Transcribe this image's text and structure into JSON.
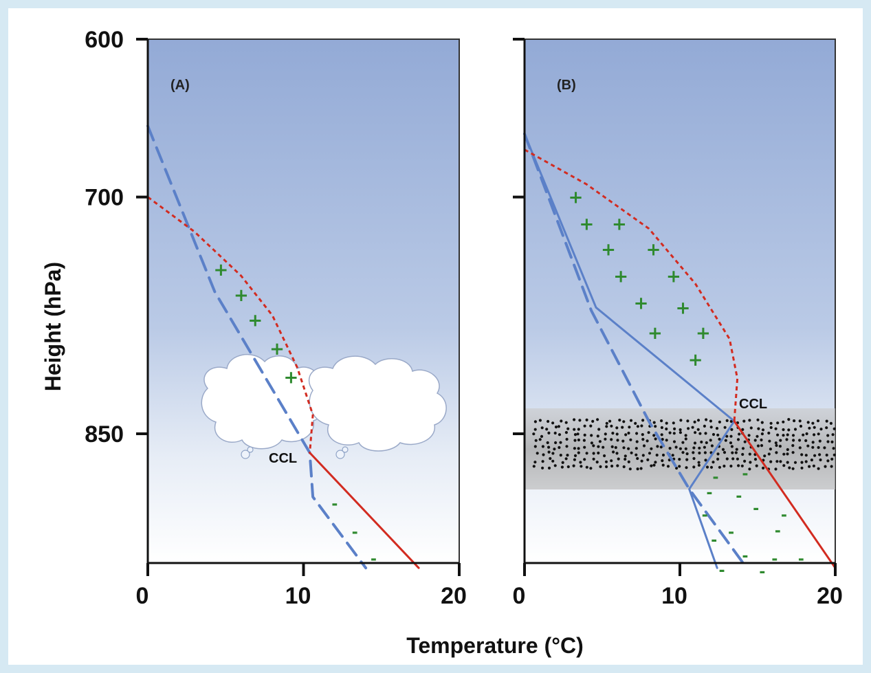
{
  "chart_data": {
    "type": "line",
    "xlabel": "Temperature (°C)",
    "ylabel": "Height (hPa)",
    "xlim": [
      0,
      20
    ],
    "ylim": [
      935,
      600
    ],
    "x_ticks": [
      0,
      10,
      20
    ],
    "y_ticks": [
      600,
      700,
      850
    ],
    "grid": false,
    "colors": {
      "environment": "#5b80c8",
      "parcel": "#d22b20",
      "sign": "#2f8a2f",
      "background_top": "#93aad6",
      "background_bottom": "#ffffff"
    },
    "panels": [
      {
        "label": "(A)",
        "ccl_label": "CCL",
        "ccl": [
          10.4,
          862
        ],
        "series": [
          {
            "role": "environment",
            "style": "dashed",
            "points": [
              [
                0,
                655
              ],
              [
                4.3,
                760
              ],
              [
                10.4,
                862
              ],
              [
                10.6,
                890
              ],
              [
                14,
                935
              ]
            ]
          },
          {
            "role": "parcel",
            "style": "dotted",
            "points": [
              [
                0,
                700
              ],
              [
                3,
                722
              ],
              [
                6,
                750
              ],
              [
                8,
                775
              ],
              [
                9.6,
                808
              ],
              [
                10.6,
                838
              ],
              [
                10.4,
                862
              ]
            ]
          },
          {
            "role": "parcel",
            "style": "solid",
            "points": [
              [
                10.4,
                862
              ],
              [
                17.4,
                935
              ]
            ]
          }
        ],
        "plus_marks": [
          [
            4.7,
            746
          ],
          [
            6.0,
            762
          ],
          [
            6.9,
            778
          ],
          [
            8.3,
            796
          ],
          [
            9.2,
            814
          ]
        ],
        "minus_marks": [
          [
            12.0,
            895
          ],
          [
            13.3,
            913
          ],
          [
            14.5,
            930
          ]
        ],
        "clouds": [
          "cloud-1",
          "cloud-2"
        ]
      },
      {
        "label": "(B)",
        "ccl_label": "CCL",
        "ccl": [
          13.5,
          842
        ],
        "cloud_layer": [
          838,
          885
        ],
        "series": [
          {
            "role": "environment",
            "style": "solid",
            "points": [
              [
                0,
                660
              ],
              [
                4.6,
                770
              ],
              [
                13.5,
                842
              ],
              [
                10.6,
                885
              ],
              [
                12.4,
                935
              ]
            ]
          },
          {
            "role": "environment",
            "style": "dashed",
            "points": [
              [
                0,
                660
              ],
              [
                4.3,
                772
              ],
              [
                8.0,
                842
              ],
              [
                10.6,
                885
              ],
              [
                14.3,
                935
              ]
            ]
          },
          {
            "role": "parcel",
            "style": "dotted",
            "points": [
              [
                0,
                670
              ],
              [
                4,
                692
              ],
              [
                8,
                720
              ],
              [
                11,
                755
              ],
              [
                13.2,
                790
              ],
              [
                13.7,
                815
              ],
              [
                13.5,
                842
              ]
            ]
          },
          {
            "role": "parcel",
            "style": "solid",
            "points": [
              [
                13.5,
                842
              ],
              [
                20,
                935
              ]
            ]
          }
        ],
        "plus_marks": [
          [
            3.3,
            700
          ],
          [
            4.0,
            717
          ],
          [
            6.1,
            717
          ],
          [
            5.4,
            733
          ],
          [
            8.3,
            733
          ],
          [
            6.2,
            750
          ],
          [
            9.6,
            750
          ],
          [
            7.5,
            767
          ],
          [
            10.2,
            770
          ],
          [
            8.4,
            786
          ],
          [
            11.5,
            786
          ],
          [
            11.0,
            803
          ]
        ],
        "minus_marks": [
          [
            12.3,
            878
          ],
          [
            14.2,
            876
          ],
          [
            11.9,
            888
          ],
          [
            13.8,
            890
          ],
          [
            11.6,
            902
          ],
          [
            14.9,
            898
          ],
          [
            16.7,
            902
          ],
          [
            12.2,
            918
          ],
          [
            13.3,
            913
          ],
          [
            16.3,
            912
          ],
          [
            14.2,
            928
          ],
          [
            16.1,
            930
          ],
          [
            17.8,
            930
          ],
          [
            12.7,
            937
          ],
          [
            15.3,
            938
          ]
        ]
      }
    ]
  }
}
